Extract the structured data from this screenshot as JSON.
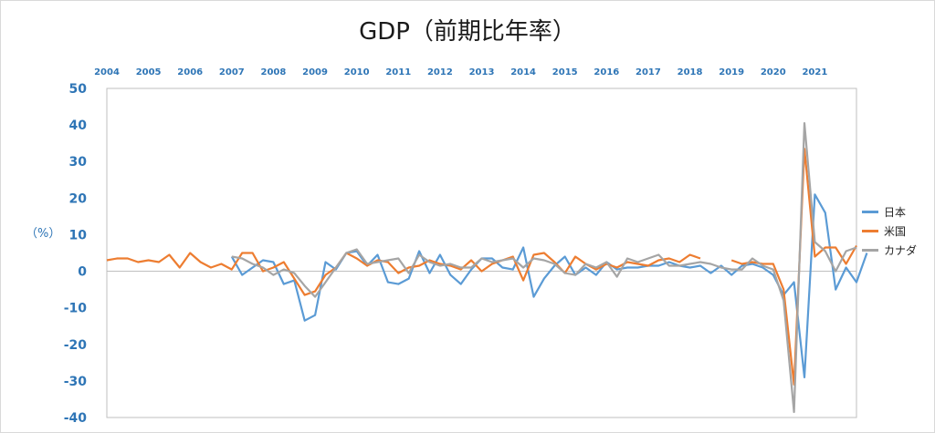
{
  "chart_data": {
    "type": "line",
    "title": "GDP（前期比年率）",
    "ylabel": "（%）",
    "ylim": [
      -40,
      50
    ],
    "yticks": [
      50,
      40,
      30,
      20,
      10,
      0,
      -10,
      -20,
      -30,
      -40
    ],
    "year_labels": [
      "2004",
      "2005",
      "2006",
      "2007",
      "2008",
      "2009",
      "2010",
      "2011",
      "2012",
      "2013",
      "2014",
      "2015",
      "2016",
      "2017",
      "2018",
      "2019",
      "2020",
      "2021"
    ],
    "x_start": 2004.0,
    "x_end": 2022.0,
    "legend_position": "right",
    "grid": false,
    "series": [
      {
        "name": "日本",
        "color": "#5b9bd5",
        "points": [
          [
            2007.0,
            4.0
          ],
          [
            2007.25,
            -1.0
          ],
          [
            2007.5,
            1.0
          ],
          [
            2007.75,
            3.0
          ],
          [
            2008.0,
            2.5
          ],
          [
            2008.25,
            -3.5
          ],
          [
            2008.5,
            -2.5
          ],
          [
            2008.75,
            -13.5
          ],
          [
            2009.0,
            -12.0
          ],
          [
            2009.25,
            2.5
          ],
          [
            2009.5,
            0.5
          ],
          [
            2009.75,
            5.0
          ],
          [
            2010.0,
            5.5
          ],
          [
            2010.25,
            1.5
          ],
          [
            2010.5,
            4.5
          ],
          [
            2010.75,
            -3.0
          ],
          [
            2011.0,
            -3.5
          ],
          [
            2011.25,
            -2.0
          ],
          [
            2011.5,
            5.5
          ],
          [
            2011.75,
            -0.5
          ],
          [
            2012.0,
            4.5
          ],
          [
            2012.25,
            -1.0
          ],
          [
            2012.5,
            -3.5
          ],
          [
            2012.75,
            0.5
          ],
          [
            2013.0,
            3.5
          ],
          [
            2013.25,
            3.5
          ],
          [
            2013.5,
            1.0
          ],
          [
            2013.75,
            0.5
          ],
          [
            2014.0,
            6.5
          ],
          [
            2014.25,
            -7.0
          ],
          [
            2014.5,
            -2.0
          ],
          [
            2014.75,
            1.5
          ],
          [
            2015.0,
            4.0
          ],
          [
            2015.25,
            -1.0
          ],
          [
            2015.5,
            1.0
          ],
          [
            2015.75,
            -1.0
          ],
          [
            2016.0,
            2.5
          ],
          [
            2016.25,
            0.5
          ],
          [
            2016.5,
            1.0
          ],
          [
            2016.75,
            1.0
          ],
          [
            2017.0,
            1.5
          ],
          [
            2017.25,
            1.5
          ],
          [
            2017.5,
            2.5
          ],
          [
            2017.75,
            1.5
          ],
          [
            2018.0,
            1.0
          ],
          [
            2018.25,
            1.5
          ],
          [
            2018.5,
            -0.5
          ],
          [
            2018.75,
            1.5
          ],
          [
            2019.0,
            -1.0
          ],
          [
            2019.25,
            1.5
          ],
          [
            2019.5,
            2.0
          ],
          [
            2019.75,
            1.0
          ],
          [
            2020.0,
            -1.0
          ],
          [
            2020.25,
            -6.5
          ],
          [
            2020.5,
            -3.0
          ],
          [
            2020.75,
            -29.0
          ],
          [
            2021.0,
            21.0
          ],
          [
            2021.25,
            16.0
          ],
          [
            2021.5,
            -5.0
          ],
          [
            2021.75,
            1.0
          ],
          [
            2022.0,
            -3.0
          ],
          [
            2022.25,
            5.0
          ]
        ]
      },
      {
        "name": "米国",
        "color": "#ed7d31",
        "points": [
          [
            2004.0,
            3.0
          ],
          [
            2004.25,
            3.5
          ],
          [
            2004.5,
            3.5
          ],
          [
            2004.75,
            2.5
          ],
          [
            2005.0,
            3.0
          ],
          [
            2005.25,
            2.5
          ],
          [
            2005.5,
            4.5
          ],
          [
            2005.75,
            1.0
          ],
          [
            2006.0,
            5.0
          ],
          [
            2006.25,
            2.5
          ],
          [
            2006.5,
            1.0
          ],
          [
            2006.75,
            2.0
          ],
          [
            2007.0,
            0.5
          ],
          [
            2007.25,
            5.0
          ],
          [
            2007.5,
            5.0
          ],
          [
            2007.75,
            0.0
          ],
          [
            2008.0,
            1.0
          ],
          [
            2008.25,
            2.5
          ],
          [
            2008.5,
            -2.0
          ],
          [
            2008.75,
            -6.5
          ],
          [
            2009.0,
            -5.5
          ],
          [
            2009.25,
            -1.0
          ],
          [
            2009.5,
            1.0
          ],
          [
            2009.75,
            5.0
          ],
          [
            2010.0,
            3.5
          ],
          [
            2010.25,
            1.5
          ],
          [
            2010.5,
            3.0
          ],
          [
            2010.75,
            2.5
          ],
          [
            2011.0,
            -0.5
          ],
          [
            2011.25,
            1.0
          ],
          [
            2011.5,
            1.5
          ],
          [
            2011.75,
            3.0
          ],
          [
            2012.0,
            2.0
          ],
          [
            2012.25,
            1.5
          ],
          [
            2012.5,
            0.5
          ],
          [
            2012.75,
            3.0
          ],
          [
            2013.0,
            0.0
          ],
          [
            2013.25,
            2.0
          ],
          [
            2013.5,
            3.0
          ],
          [
            2013.75,
            4.0
          ],
          [
            2014.0,
            -2.5
          ],
          [
            2014.25,
            4.5
          ],
          [
            2014.5,
            5.0
          ],
          [
            2014.75,
            2.5
          ],
          [
            2015.0,
            -0.5
          ],
          [
            2015.25,
            4.0
          ],
          [
            2015.5,
            2.0
          ],
          [
            2015.75,
            0.5
          ],
          [
            2016.0,
            2.0
          ],
          [
            2016.25,
            1.0
          ],
          [
            2016.5,
            2.5
          ],
          [
            2016.75,
            2.0
          ],
          [
            2017.0,
            1.5
          ],
          [
            2017.25,
            3.0
          ],
          [
            2017.5,
            3.5
          ],
          [
            2017.75,
            2.5
          ],
          [
            2018.0,
            4.5
          ],
          [
            2018.25,
            3.5
          ],
          null,
          [
            2019.0,
            3.0
          ],
          [
            2019.25,
            2.0
          ],
          [
            2019.5,
            2.5
          ],
          [
            2019.75,
            2.0
          ],
          [
            2020.0,
            2.0
          ],
          [
            2020.25,
            -5.0
          ],
          [
            2020.5,
            -31.0
          ],
          [
            2020.75,
            33.5
          ],
          [
            2021.0,
            4.0
          ],
          [
            2021.25,
            6.5
          ],
          [
            2021.5,
            6.5
          ],
          [
            2021.75,
            2.0
          ],
          [
            2022.0,
            7.0
          ]
        ]
      },
      {
        "name": "カナダ",
        "color": "#a5a5a5",
        "points": [
          [
            2007.0,
            4.0
          ],
          [
            2007.25,
            3.5
          ],
          [
            2007.5,
            2.0
          ],
          [
            2007.75,
            1.0
          ],
          [
            2008.0,
            -1.0
          ],
          [
            2008.25,
            0.5
          ],
          [
            2008.5,
            -0.5
          ],
          [
            2008.75,
            -4.0
          ],
          [
            2009.0,
            -7.0
          ],
          [
            2009.25,
            -3.0
          ],
          [
            2009.5,
            1.0
          ],
          [
            2009.75,
            5.0
          ],
          [
            2010.0,
            6.0
          ],
          [
            2010.25,
            2.0
          ],
          [
            2010.5,
            2.5
          ],
          [
            2010.75,
            3.0
          ],
          [
            2011.0,
            3.5
          ],
          [
            2011.25,
            -0.5
          ],
          [
            2011.5,
            4.5
          ],
          [
            2011.75,
            2.5
          ],
          [
            2012.0,
            1.5
          ],
          [
            2012.25,
            2.0
          ],
          [
            2012.5,
            1.0
          ],
          [
            2012.75,
            1.0
          ],
          [
            2013.0,
            3.5
          ],
          [
            2013.25,
            2.5
          ],
          [
            2013.5,
            3.0
          ],
          [
            2013.75,
            3.5
          ],
          [
            2014.0,
            1.0
          ],
          [
            2014.25,
            3.5
          ],
          [
            2014.5,
            3.0
          ],
          [
            2014.75,
            2.0
          ],
          [
            2015.0,
            -0.5
          ],
          [
            2015.25,
            -1.0
          ],
          [
            2015.5,
            2.0
          ],
          [
            2015.75,
            1.0
          ],
          [
            2016.0,
            2.5
          ],
          [
            2016.25,
            -1.5
          ],
          [
            2016.5,
            3.5
          ],
          [
            2016.75,
            2.5
          ],
          [
            2017.0,
            3.5
          ],
          [
            2017.25,
            4.5
          ],
          [
            2017.5,
            1.5
          ],
          [
            2017.75,
            1.5
          ],
          [
            2018.0,
            2.0
          ],
          [
            2018.25,
            2.5
          ],
          [
            2018.5,
            2.0
          ],
          [
            2018.75,
            1.0
          ],
          [
            2019.0,
            0.5
          ],
          [
            2019.25,
            0.5
          ],
          [
            2019.5,
            3.5
          ],
          [
            2019.75,
            1.5
          ],
          [
            2020.0,
            0.5
          ],
          [
            2020.25,
            -8.0
          ],
          [
            2020.5,
            -38.5
          ],
          [
            2020.75,
            40.5
          ],
          [
            2021.0,
            8.0
          ],
          [
            2021.25,
            5.5
          ],
          [
            2021.5,
            0.0
          ],
          [
            2021.75,
            5.5
          ],
          [
            2022.0,
            6.5
          ]
        ]
      }
    ]
  }
}
